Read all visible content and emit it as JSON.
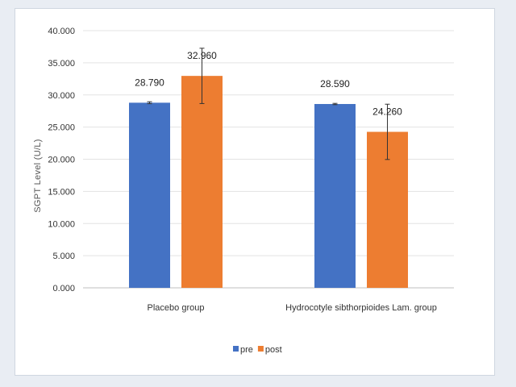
{
  "chart_data": {
    "type": "bar",
    "ylabel": "SGPT Level (U/L)",
    "xlabel": "",
    "ylim": [
      0,
      40
    ],
    "yticks": [
      "0.000",
      "5.000",
      "10.000",
      "15.000",
      "20.000",
      "25.000",
      "30.000",
      "35.000",
      "40.000"
    ],
    "categories": [
      "Placebo group",
      "Hydrocotyle sibthorpioides Lam. group"
    ],
    "series": [
      {
        "name": "pre",
        "values": [
          28.79,
          28.59
        ],
        "labels": [
          "28.790",
          "28.590"
        ],
        "error": [
          0.15,
          0.1
        ],
        "color": "#4472c4"
      },
      {
        "name": "post",
        "values": [
          32.96,
          24.26
        ],
        "labels": [
          "32.960",
          "24.260"
        ],
        "error": [
          4.3,
          4.3
        ],
        "color": "#ed7d31"
      }
    ],
    "grid": true,
    "legend_position": "bottom"
  }
}
